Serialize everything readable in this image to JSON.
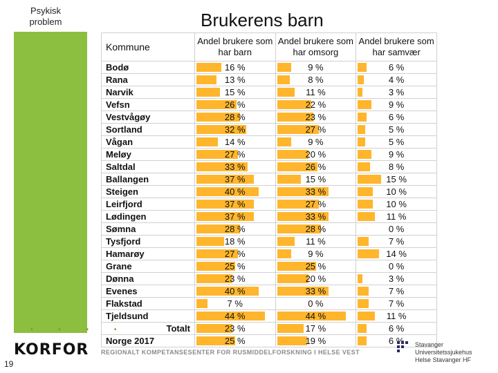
{
  "slide": {
    "tag_line1": "Psykisk",
    "tag_line2": "problem",
    "title": "Brukerens barn",
    "page_number": "19",
    "logo": "KORFOR",
    "subtitle": "REGIONALT KOMPETANSESENTER FOR RUSMIDDELFORSKNING I HELSE VEST",
    "right_logo_line1": "Stavanger Universitetssjukehus",
    "right_logo_line2": "Helse Stavanger HF"
  },
  "table": {
    "headers": [
      "Kommune",
      "Andel brukere som har barn",
      "Andel brukere som har omsorg",
      "Andel brukere som har samvær"
    ],
    "rows": [
      {
        "name": "Bodø",
        "barn": "16 %",
        "omsorg": "9 %",
        "samvaer": "6 %",
        "v": [
          16,
          9,
          6
        ]
      },
      {
        "name": "Rana",
        "barn": "13 %",
        "omsorg": "8 %",
        "samvaer": "4 %",
        "v": [
          13,
          8,
          4
        ]
      },
      {
        "name": "Narvik",
        "barn": "15 %",
        "omsorg": "11 %",
        "samvaer": "3 %",
        "v": [
          15,
          11,
          3
        ]
      },
      {
        "name": "Vefsn",
        "barn": "26 %",
        "omsorg": "22 %",
        "samvaer": "9 %",
        "v": [
          26,
          22,
          9
        ]
      },
      {
        "name": "Vestvågøy",
        "barn": "28 %",
        "omsorg": "23 %",
        "samvaer": "6 %",
        "v": [
          28,
          23,
          6
        ]
      },
      {
        "name": "Sortland",
        "barn": "32 %",
        "omsorg": "27 %",
        "samvaer": "5 %",
        "v": [
          32,
          27,
          5
        ]
      },
      {
        "name": "Vågan",
        "barn": "14 %",
        "omsorg": "9 %",
        "samvaer": "5 %",
        "v": [
          14,
          9,
          5
        ]
      },
      {
        "name": "Meløy",
        "barn": "27 %",
        "omsorg": "20 %",
        "samvaer": "9 %",
        "v": [
          27,
          20,
          9
        ]
      },
      {
        "name": "Saltdal",
        "barn": "33 %",
        "omsorg": "26 %",
        "samvaer": "8 %",
        "v": [
          33,
          26,
          8
        ]
      },
      {
        "name": "Ballangen",
        "barn": "37 %",
        "omsorg": "15 %",
        "samvaer": "15 %",
        "v": [
          37,
          15,
          15
        ]
      },
      {
        "name": "Steigen",
        "barn": "40 %",
        "omsorg": "33 %",
        "samvaer": "10 %",
        "v": [
          40,
          33,
          10
        ]
      },
      {
        "name": "Leirfjord",
        "barn": "37 %",
        "omsorg": "27 %",
        "samvaer": "10 %",
        "v": [
          37,
          27,
          10
        ]
      },
      {
        "name": "Lødingen",
        "barn": "37 %",
        "omsorg": "33 %",
        "samvaer": "11 %",
        "v": [
          37,
          33,
          11
        ]
      },
      {
        "name": "Sømna",
        "barn": "28 %",
        "omsorg": "28 %",
        "samvaer": "0 %",
        "v": [
          28,
          28,
          0
        ]
      },
      {
        "name": "Tysfjord",
        "barn": "18 %",
        "omsorg": "11 %",
        "samvaer": "7 %",
        "v": [
          18,
          11,
          7
        ]
      },
      {
        "name": "Hamarøy",
        "barn": "27 %",
        "omsorg": "9 %",
        "samvaer": "14 %",
        "v": [
          27,
          9,
          14
        ]
      },
      {
        "name": "Grane",
        "barn": "25 %",
        "omsorg": "25 %",
        "samvaer": "0 %",
        "v": [
          25,
          25,
          0
        ]
      },
      {
        "name": "Dønna",
        "barn": "23 %",
        "omsorg": "20 %",
        "samvaer": "3 %",
        "v": [
          23,
          20,
          3
        ]
      },
      {
        "name": "Evenes",
        "barn": "40 %",
        "omsorg": "33 %",
        "samvaer": "7 %",
        "v": [
          40,
          33,
          7
        ]
      },
      {
        "name": "Flakstad",
        "barn": "7 %",
        "omsorg": "0 %",
        "samvaer": "7 %",
        "v": [
          7,
          0,
          7
        ]
      },
      {
        "name": "Tjeldsund",
        "barn": "44 %",
        "omsorg": "44 %",
        "samvaer": "11 %",
        "v": [
          44,
          44,
          11
        ]
      },
      {
        "name": "Totalt",
        "barn": "23 %",
        "omsorg": "17 %",
        "samvaer": "6 %",
        "v": [
          23,
          17,
          6
        ],
        "total": true
      },
      {
        "name": "Norge 2017",
        "barn": "25 %",
        "omsorg": "19 %",
        "samvaer": "6 %",
        "v": [
          25,
          19,
          6
        ]
      }
    ]
  },
  "colors": {
    "bar": "#ffb62c",
    "sidebar": "#8cbf3f"
  }
}
